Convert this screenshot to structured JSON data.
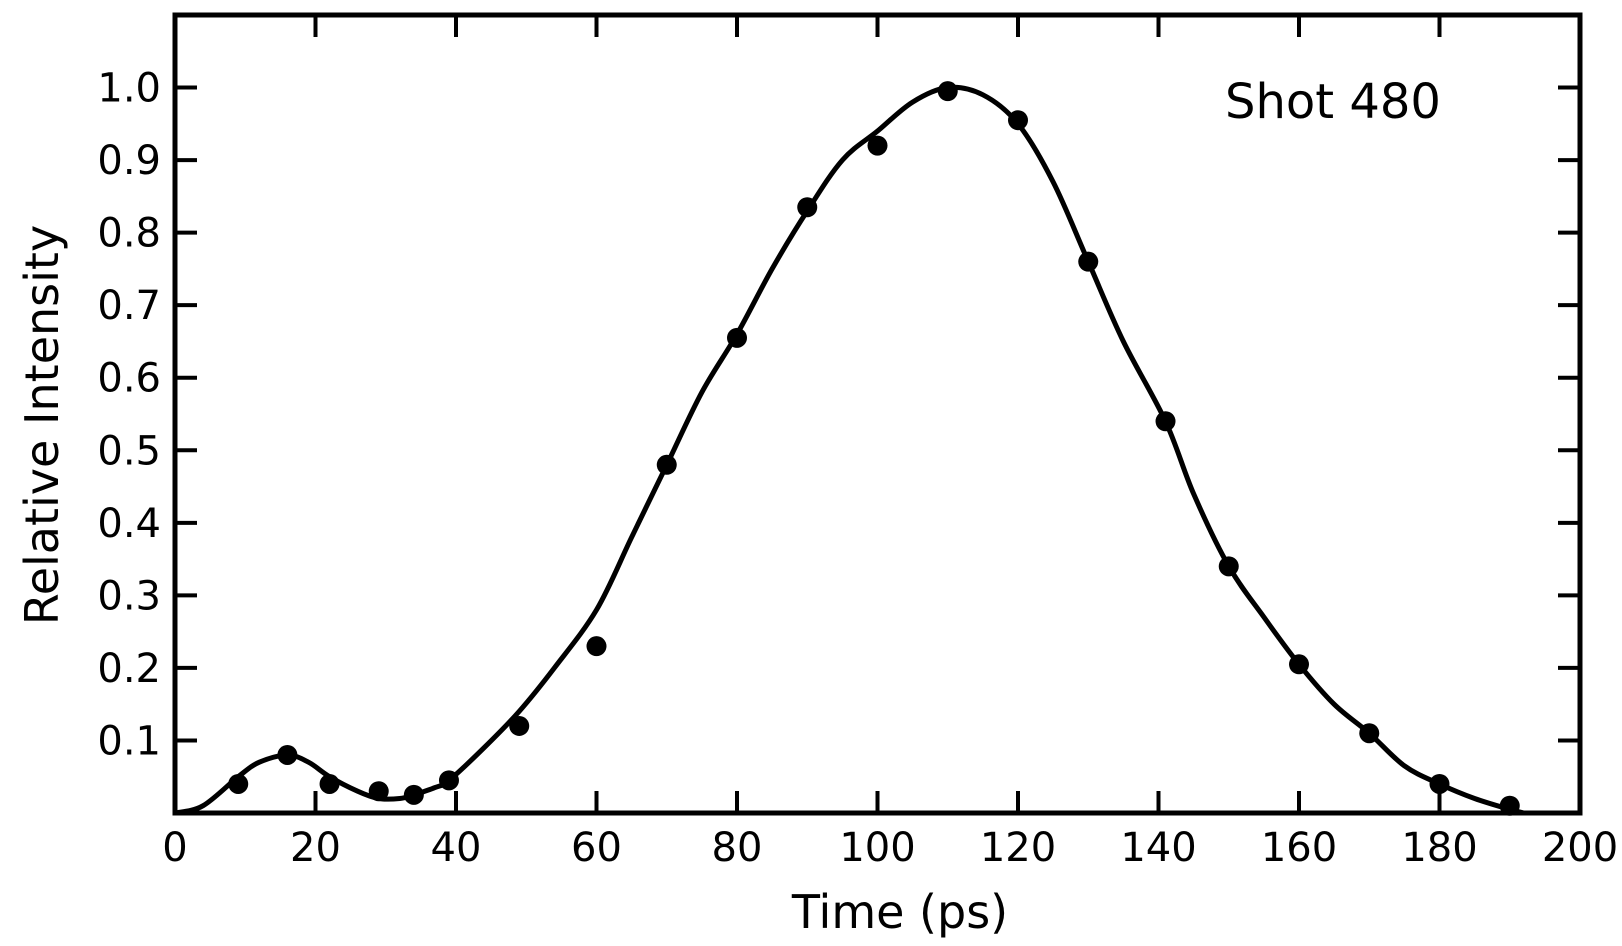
{
  "chart_data": {
    "type": "scatter",
    "title": "",
    "annotation": "Shot 480",
    "xlabel": "Time (ps)",
    "ylabel": "Relative Intensity",
    "xlim": [
      0,
      200
    ],
    "ylim": [
      0,
      1.0
    ],
    "x_ticks": [
      0,
      20,
      40,
      60,
      80,
      100,
      120,
      140,
      160,
      180,
      200
    ],
    "x_tick_labels": [
      "0",
      "20",
      "40",
      "60",
      "80",
      "100",
      "120",
      "140",
      "160",
      "180",
      "200"
    ],
    "y_ticks": [
      0.1,
      0.2,
      0.3,
      0.4,
      0.5,
      0.6,
      0.7,
      0.8,
      0.9,
      1.0
    ],
    "y_tick_labels": [
      "0.1",
      "0.2",
      "0.3",
      "0.4",
      "0.5",
      "0.6",
      "0.7",
      "0.8",
      "0.9",
      "1.0"
    ],
    "grid": false,
    "legend": "none",
    "points": [
      {
        "x": 9,
        "y": 0.04
      },
      {
        "x": 16,
        "y": 0.08
      },
      {
        "x": 22,
        "y": 0.04
      },
      {
        "x": 29,
        "y": 0.03
      },
      {
        "x": 34,
        "y": 0.025
      },
      {
        "x": 39,
        "y": 0.045
      },
      {
        "x": 49,
        "y": 0.12
      },
      {
        "x": 60,
        "y": 0.23
      },
      {
        "x": 70,
        "y": 0.48
      },
      {
        "x": 80,
        "y": 0.655
      },
      {
        "x": 90,
        "y": 0.835
      },
      {
        "x": 100,
        "y": 0.92
      },
      {
        "x": 110,
        "y": 0.995
      },
      {
        "x": 120,
        "y": 0.955
      },
      {
        "x": 130,
        "y": 0.76
      },
      {
        "x": 141,
        "y": 0.54
      },
      {
        "x": 150,
        "y": 0.34
      },
      {
        "x": 160,
        "y": 0.205
      },
      {
        "x": 170,
        "y": 0.11
      },
      {
        "x": 180,
        "y": 0.04
      },
      {
        "x": 190,
        "y": 0.01
      }
    ],
    "fit_curve": {
      "x": [
        0,
        4,
        9,
        12,
        16,
        19,
        22,
        26,
        29,
        32,
        34,
        37,
        39,
        44,
        49,
        54,
        60,
        65,
        70,
        75,
        80,
        85,
        90,
        95,
        100,
        105,
        110,
        115,
        120,
        125,
        130,
        135,
        141,
        145,
        150,
        155,
        160,
        165,
        170,
        175,
        180,
        185,
        190,
        192
      ],
      "y": [
        0.0,
        0.01,
        0.05,
        0.07,
        0.08,
        0.07,
        0.05,
        0.03,
        0.02,
        0.02,
        0.025,
        0.035,
        0.045,
        0.09,
        0.14,
        0.2,
        0.28,
        0.38,
        0.48,
        0.58,
        0.66,
        0.75,
        0.83,
        0.9,
        0.94,
        0.98,
        1.0,
        0.99,
        0.95,
        0.87,
        0.76,
        0.65,
        0.54,
        0.44,
        0.34,
        0.27,
        0.205,
        0.15,
        0.11,
        0.065,
        0.04,
        0.02,
        0.005,
        0.0
      ]
    },
    "colors": {
      "ink": "#000000",
      "background": "#ffffff"
    }
  }
}
